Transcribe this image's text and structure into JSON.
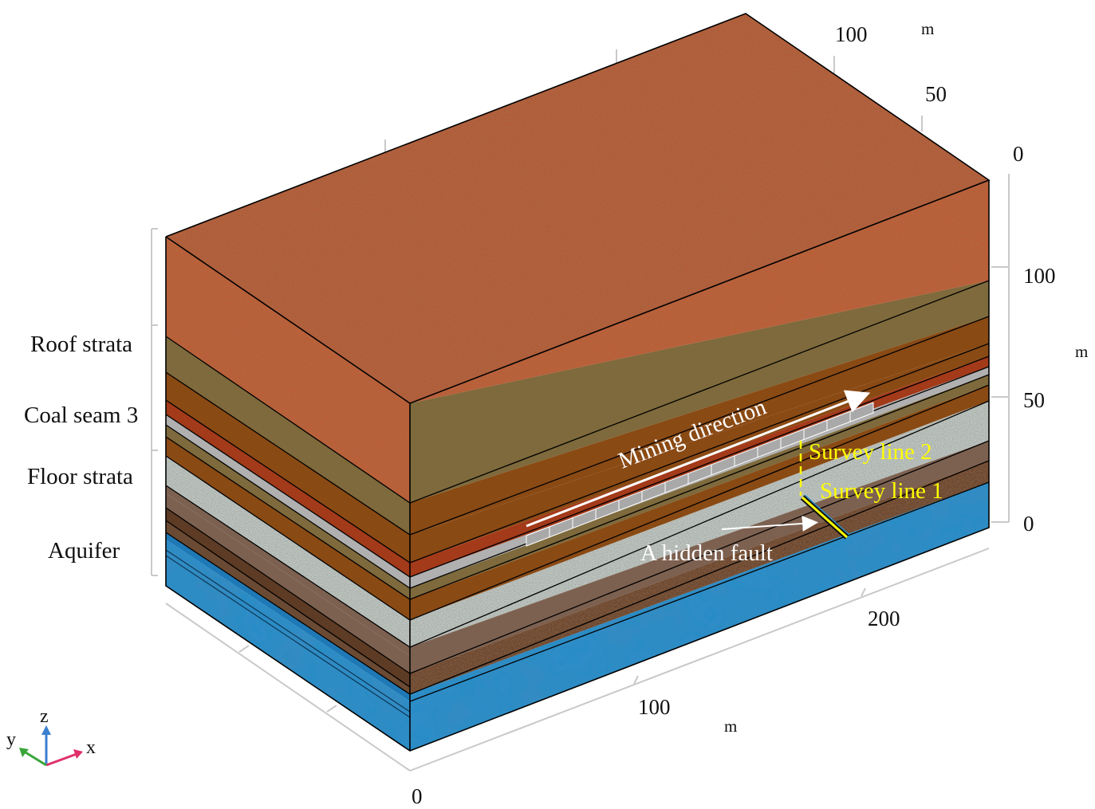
{
  "strata_labels": [
    "Roof strata",
    "Coal seam 3",
    "Floor strata",
    "Aquifer"
  ],
  "annotations": {
    "mining_direction": "Mining direction",
    "survey_line_2": "Survey line 2",
    "survey_line_1": "Survey line 1",
    "hidden_fault": "A hidden fault"
  },
  "axes": {
    "x": {
      "ticks": [
        "0",
        "100",
        "200"
      ],
      "unit": "m"
    },
    "y": {
      "ticks": [
        "0",
        "50",
        "100"
      ],
      "unit": "m"
    },
    "z": {
      "ticks": [
        "0",
        "50",
        "100"
      ],
      "unit": "m"
    }
  },
  "triad": {
    "x": "x",
    "y": "y",
    "z": "z"
  },
  "colors": {
    "top_soil": "#b5562e",
    "khaki": "#7e6a3c",
    "brown": "#8a4a14",
    "red_brown": "#a33a1a",
    "coal_grey": "#aaaaaa",
    "gravel": "#7f8a84",
    "mudstone": "#7d6150",
    "dark_brown": "#5d3b24",
    "aquifer_blue": "#2a8dc9",
    "survey_yellow": "#ffff00"
  }
}
